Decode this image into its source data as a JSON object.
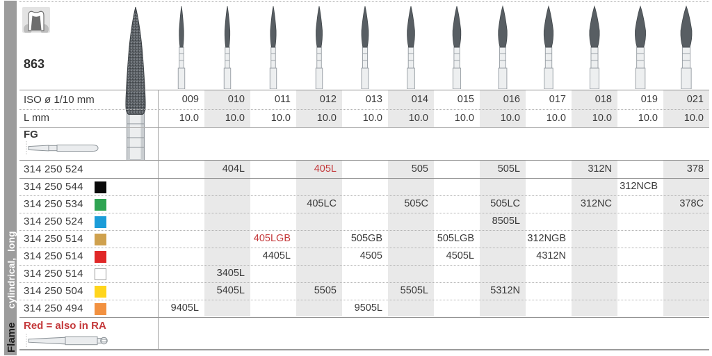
{
  "sidebar": {
    "family_label": "Flame",
    "shape_label": "cylindrical, long"
  },
  "product": {
    "figure_number": "863"
  },
  "icons": {
    "tooth_icon": "prepared-tooth-crown-icon",
    "figure_bur": "flame-diamond-bur-illustration",
    "fg_shank": "friction-grip-shank-illustration",
    "ra_shank": "latch-type-shank-illustration"
  },
  "table": {
    "iso_row_label": "ISO ø 1/10 mm",
    "length_row_label": "L mm",
    "shank_type_label": "FG",
    "columns": [
      "009",
      "010",
      "011",
      "012",
      "013",
      "014",
      "015",
      "016",
      "017",
      "018",
      "019",
      "021"
    ],
    "lengths_mm": [
      "10.0",
      "10.0",
      "10.0",
      "10.0",
      "10.0",
      "10.0",
      "10.0",
      "10.0",
      "10.0",
      "10.0",
      "10.0",
      "10.0"
    ],
    "rows": [
      {
        "order_code": "314 250 524",
        "grit_color": null,
        "cells": [
          {
            "column": "010",
            "value": "404L"
          },
          {
            "column": "012",
            "value": "405L",
            "red": true
          },
          {
            "column": "014",
            "value": "505"
          },
          {
            "column": "016",
            "value": "505L"
          },
          {
            "column": "018",
            "value": "312N"
          },
          {
            "column": "021",
            "value": "378"
          }
        ]
      },
      {
        "order_code": "314 250 544",
        "grit_color": "#0a0a0a",
        "cells": [
          {
            "column": "019",
            "value": "312NCB"
          }
        ]
      },
      {
        "order_code": "314 250 534",
        "grit_color": "#2fa452",
        "cells": [
          {
            "column": "012",
            "value": "405LC"
          },
          {
            "column": "014",
            "value": "505C"
          },
          {
            "column": "016",
            "value": "505LC"
          },
          {
            "column": "018",
            "value": "312NC"
          },
          {
            "column": "021",
            "value": "378C"
          }
        ]
      },
      {
        "order_code": "314 250 524",
        "grit_color": "#1b9cd8",
        "cells": [
          {
            "column": "016",
            "value": "8505L"
          }
        ]
      },
      {
        "order_code": "314 250 514",
        "grit_color": "#cfa14e",
        "cells": [
          {
            "column": "011",
            "value": "405LGB",
            "red": true
          },
          {
            "column": "013",
            "value": "505GB"
          },
          {
            "column": "015",
            "value": "505LGB"
          },
          {
            "column": "017",
            "value": "312NGB"
          }
        ]
      },
      {
        "order_code": "314 250 514",
        "grit_color": "#e02727",
        "cells": [
          {
            "column": "011",
            "value": "4405L"
          },
          {
            "column": "013",
            "value": "4505"
          },
          {
            "column": "015",
            "value": "4505L"
          },
          {
            "column": "017",
            "value": "4312N"
          }
        ]
      },
      {
        "order_code": "314 250 514",
        "grit_color": "#ffffff",
        "cells": [
          {
            "column": "010",
            "value": "3405L"
          }
        ]
      },
      {
        "order_code": "314 250 504",
        "grit_color": "#ffd51c",
        "cells": [
          {
            "column": "010",
            "value": "5405L"
          },
          {
            "column": "012",
            "value": "5505"
          },
          {
            "column": "014",
            "value": "5505L"
          },
          {
            "column": "016",
            "value": "5312N"
          }
        ]
      },
      {
        "order_code": "314 250 494",
        "grit_color": "#f29140",
        "cells": [
          {
            "column": "009",
            "value": "9405L"
          },
          {
            "column": "013",
            "value": "9505L"
          }
        ]
      }
    ]
  },
  "footer": {
    "note": "Red = also in RA"
  },
  "colors": {
    "highlight_red": "#c4393b",
    "stripe_gray": "#e9e9e9",
    "sidebar_gray": "#9c9c9c"
  }
}
